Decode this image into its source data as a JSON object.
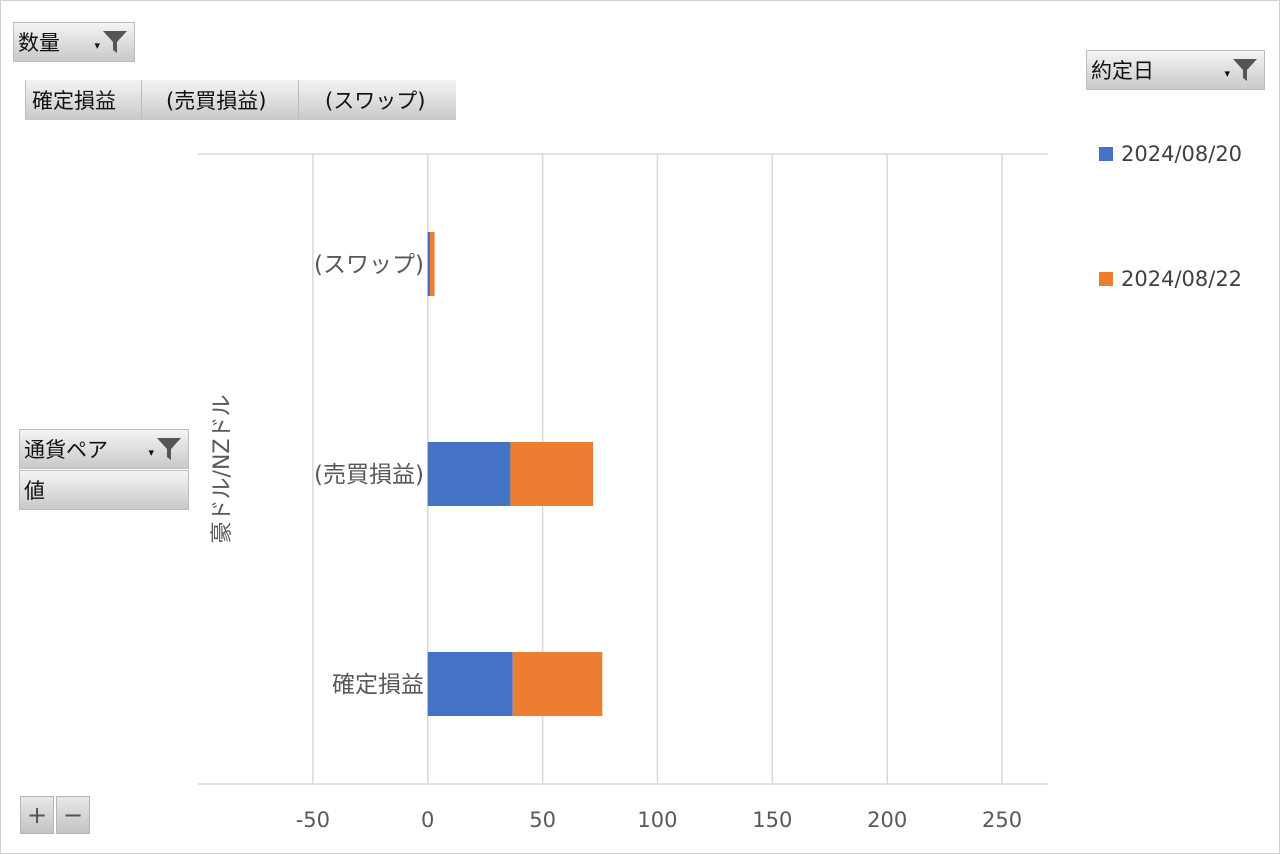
{
  "pivot": {
    "data_field": "数量",
    "value_tabs": [
      "確定損益",
      "(売買損益)",
      "(スワップ)"
    ],
    "legend_field": "約定日",
    "row_field": "通貨ペア",
    "values_label": "値"
  },
  "controls": {
    "expand_label": "+",
    "collapse_label": "−"
  },
  "colors": {
    "series1": "#4472C4",
    "series2": "#ED7D31",
    "gridline": "#d9d9d9"
  },
  "chart_data": {
    "type": "bar",
    "orientation": "horizontal",
    "stacked": true,
    "group_label": "豪ドル/NZドル",
    "categories": [
      "(スワップ)",
      "(売買損益)",
      "確定損益"
    ],
    "series": [
      {
        "name": "2024/08/20",
        "values": [
          1,
          36,
          37
        ]
      },
      {
        "name": "2024/08/22",
        "values": [
          2,
          36,
          39
        ]
      }
    ],
    "xlim": [
      -100,
      270
    ],
    "xticks": [
      -50,
      0,
      50,
      100,
      150,
      200,
      250
    ],
    "grid": true,
    "legend_position": "right"
  }
}
